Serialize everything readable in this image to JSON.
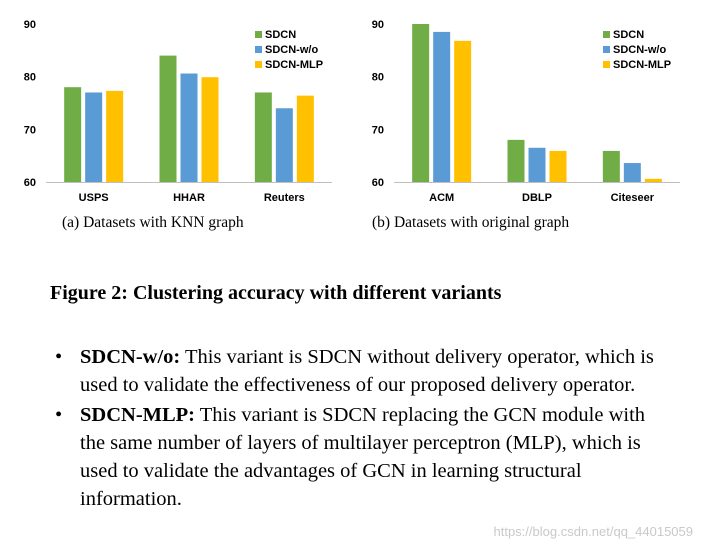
{
  "chart_data": [
    {
      "type": "bar",
      "categories": [
        "USPS",
        "HHAR",
        "Reuters"
      ],
      "series": [
        {
          "name": "SDCN",
          "color": "#70ad47",
          "values": [
            78.0,
            84.0,
            77.0
          ]
        },
        {
          "name": "SDCN-w/o",
          "color": "#5b9bd5",
          "values": [
            77.0,
            80.6,
            74.0
          ]
        },
        {
          "name": "SDCN-MLP",
          "color": "#ffc000",
          "values": [
            77.3,
            79.9,
            76.4
          ]
        }
      ],
      "ylim": [
        60,
        90
      ],
      "yticks": [
        "60",
        "70",
        "80",
        "90"
      ],
      "legend": "top-right",
      "caption": "(a)  Datasets with KNN graph"
    },
    {
      "type": "bar",
      "categories": [
        "ACM",
        "DBLP",
        "Citeseer"
      ],
      "series": [
        {
          "name": "SDCN",
          "color": "#70ad47",
          "values": [
            90.0,
            68.0,
            65.9
          ]
        },
        {
          "name": "SDCN-w/o",
          "color": "#5b9bd5",
          "values": [
            88.5,
            66.5,
            63.6
          ]
        },
        {
          "name": "SDCN-MLP",
          "color": "#ffc000",
          "values": [
            86.8,
            65.9,
            60.6
          ]
        }
      ],
      "ylim": [
        60,
        90
      ],
      "yticks": [
        "60",
        "70",
        "80",
        "90"
      ],
      "legend": "top-right",
      "caption": "(b)  Datasets with original graph"
    }
  ],
  "figure_title": "Figure 2: Clustering accuracy with different variants",
  "bullets": [
    {
      "marker": "•",
      "term": "SDCN-w/o:",
      "text": " This variant is SDCN without delivery operator, which is used to validate the effectiveness of our proposed delivery operator."
    },
    {
      "marker": "•",
      "term": "SDCN-MLP:",
      "text": " This variant is SDCN replacing the GCN module with the same number of layers of multilayer perceptron (MLP), which is used to validate the advantages of GCN in learning structural information."
    }
  ],
  "watermark": "https://blog.csdn.net/qq_44015059"
}
